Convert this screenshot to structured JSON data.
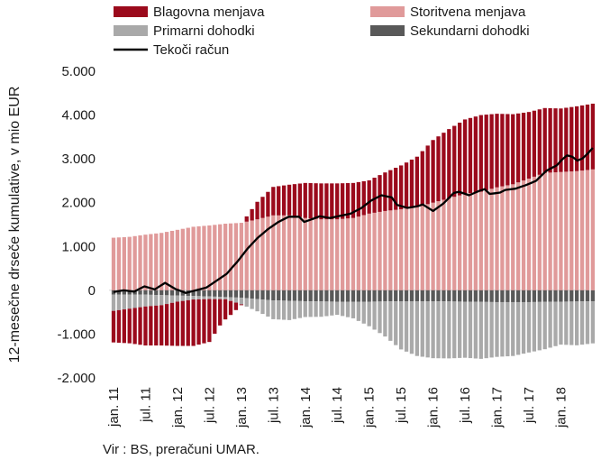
{
  "chart_data": {
    "type": "bar",
    "ylabel": "12-mesečne drseče kumulative, v mio EUR",
    "ylim": [
      -2000,
      5000
    ],
    "y_ticks": [
      -2000,
      -1000,
      0,
      1000,
      2000,
      3000,
      4000,
      5000
    ],
    "y_tick_labels": [
      "-2.000",
      "-1.000",
      "0",
      "1.000",
      "2.000",
      "3.000",
      "4.000",
      "5.000"
    ],
    "x_start": "2011-01",
    "x_end": "2018-07",
    "x_tick_labels": [
      "jan. 11",
      "jul. 11",
      "jan. 12",
      "jul. 12",
      "jan. 13",
      "jul. 13",
      "jan. 14",
      "jul. 14",
      "jan. 15",
      "jul. 15",
      "jan. 16",
      "jul. 16",
      "jan. 17",
      "jul. 17",
      "jan. 18"
    ],
    "legend": [
      {
        "name": "Blagovna menjava",
        "color": "#9b0a1c",
        "kind": "bar"
      },
      {
        "name": "Storitvena menjava",
        "color": "#e09a9a",
        "kind": "bar"
      },
      {
        "name": "Primarni dohodki",
        "color": "#a9a9a9",
        "kind": "bar"
      },
      {
        "name": "Sekundarni dohodki",
        "color": "#595959",
        "kind": "bar"
      },
      {
        "name": "Tekoči račun",
        "color": "#000000",
        "kind": "line"
      }
    ],
    "series": [
      {
        "name": "Blagovna menjava",
        "keys": [
          [
            0,
            -720
          ],
          [
            3,
            -790
          ],
          [
            6,
            -890
          ],
          [
            9,
            -920
          ],
          [
            12,
            -1010
          ],
          [
            15,
            -1060
          ],
          [
            18,
            -980
          ],
          [
            20,
            -600
          ],
          [
            22,
            -320
          ],
          [
            24,
            -20
          ],
          [
            27,
            400
          ],
          [
            30,
            650
          ],
          [
            33,
            700
          ],
          [
            36,
            800
          ],
          [
            39,
            820
          ],
          [
            42,
            820
          ],
          [
            45,
            800
          ],
          [
            48,
            760
          ],
          [
            51,
            880
          ],
          [
            54,
            1000
          ],
          [
            57,
            1150
          ],
          [
            60,
            1430
          ],
          [
            63,
            1580
          ],
          [
            66,
            1700
          ],
          [
            69,
            1750
          ],
          [
            72,
            1680
          ],
          [
            75,
            1600
          ],
          [
            78,
            1520
          ],
          [
            81,
            1480
          ],
          [
            84,
            1450
          ],
          [
            87,
            1480
          ],
          [
            90,
            1500
          ],
          [
            91,
            1620
          ]
        ]
      },
      {
        "name": "Storitvena menjava",
        "keys": [
          [
            0,
            1200
          ],
          [
            3,
            1220
          ],
          [
            6,
            1270
          ],
          [
            9,
            1310
          ],
          [
            12,
            1380
          ],
          [
            15,
            1450
          ],
          [
            18,
            1480
          ],
          [
            21,
            1520
          ],
          [
            24,
            1540
          ],
          [
            27,
            1620
          ],
          [
            30,
            1710
          ],
          [
            33,
            1710
          ],
          [
            36,
            1650
          ],
          [
            39,
            1620
          ],
          [
            42,
            1620
          ],
          [
            45,
            1650
          ],
          [
            48,
            1750
          ],
          [
            51,
            1810
          ],
          [
            54,
            1850
          ],
          [
            57,
            1900
          ],
          [
            60,
            2000
          ],
          [
            63,
            2100
          ],
          [
            66,
            2200
          ],
          [
            69,
            2250
          ],
          [
            72,
            2350
          ],
          [
            75,
            2420
          ],
          [
            78,
            2550
          ],
          [
            81,
            2680
          ],
          [
            84,
            2700
          ],
          [
            87,
            2720
          ],
          [
            90,
            2760
          ],
          [
            91,
            2770
          ]
        ]
      },
      {
        "name": "Primarni dohodki",
        "keys": [
          [
            0,
            -370
          ],
          [
            3,
            -320
          ],
          [
            6,
            -270
          ],
          [
            9,
            -230
          ],
          [
            12,
            -140
          ],
          [
            15,
            -80
          ],
          [
            18,
            -60
          ],
          [
            21,
            -50
          ],
          [
            24,
            -150
          ],
          [
            27,
            -280
          ],
          [
            30,
            -430
          ],
          [
            33,
            -440
          ],
          [
            36,
            -360
          ],
          [
            39,
            -350
          ],
          [
            42,
            -300
          ],
          [
            45,
            -380
          ],
          [
            48,
            -560
          ],
          [
            51,
            -800
          ],
          [
            54,
            -1100
          ],
          [
            57,
            -1250
          ],
          [
            60,
            -1300
          ],
          [
            63,
            -1300
          ],
          [
            66,
            -1280
          ],
          [
            69,
            -1300
          ],
          [
            72,
            -1250
          ],
          [
            75,
            -1230
          ],
          [
            78,
            -1150
          ],
          [
            81,
            -1080
          ],
          [
            84,
            -980
          ],
          [
            87,
            -1000
          ],
          [
            90,
            -960
          ],
          [
            91,
            -880
          ]
        ]
      },
      {
        "name": "Sekundarni dohodki",
        "keys": [
          [
            0,
            -100
          ],
          [
            6,
            -100
          ],
          [
            12,
            -120
          ],
          [
            18,
            -140
          ],
          [
            24,
            -170
          ],
          [
            27,
            -200
          ],
          [
            30,
            -230
          ],
          [
            36,
            -250
          ],
          [
            42,
            -260
          ],
          [
            48,
            -260
          ],
          [
            54,
            -250
          ],
          [
            60,
            -250
          ],
          [
            66,
            -260
          ],
          [
            72,
            -270
          ],
          [
            78,
            -270
          ],
          [
            84,
            -260
          ],
          [
            91,
            -250
          ]
        ]
      },
      {
        "name": "Tekoči račun",
        "keys": [
          [
            0,
            -40
          ],
          [
            2,
            0
          ],
          [
            4,
            -30
          ],
          [
            6,
            90
          ],
          [
            8,
            20
          ],
          [
            10,
            170
          ],
          [
            12,
            30
          ],
          [
            14,
            -60
          ],
          [
            16,
            0
          ],
          [
            18,
            60
          ],
          [
            20,
            220
          ],
          [
            22,
            380
          ],
          [
            24,
            650
          ],
          [
            26,
            950
          ],
          [
            28,
            1200
          ],
          [
            30,
            1400
          ],
          [
            32,
            1560
          ],
          [
            34,
            1680
          ],
          [
            36,
            1680
          ],
          [
            37,
            1560
          ],
          [
            38,
            1600
          ],
          [
            40,
            1690
          ],
          [
            42,
            1650
          ],
          [
            44,
            1700
          ],
          [
            46,
            1750
          ],
          [
            48,
            1870
          ],
          [
            50,
            2050
          ],
          [
            52,
            2170
          ],
          [
            54,
            2120
          ],
          [
            55,
            1950
          ],
          [
            57,
            1880
          ],
          [
            59,
            1920
          ],
          [
            60,
            1960
          ],
          [
            62,
            1810
          ],
          [
            64,
            1980
          ],
          [
            66,
            2220
          ],
          [
            67,
            2250
          ],
          [
            69,
            2170
          ],
          [
            71,
            2270
          ],
          [
            72,
            2310
          ],
          [
            73,
            2200
          ],
          [
            75,
            2230
          ],
          [
            76,
            2290
          ],
          [
            78,
            2320
          ],
          [
            80,
            2400
          ],
          [
            82,
            2500
          ],
          [
            84,
            2730
          ],
          [
            86,
            2850
          ],
          [
            87,
            2980
          ],
          [
            88,
            3080
          ],
          [
            89,
            3050
          ],
          [
            90,
            2960
          ],
          [
            91,
            3010
          ],
          [
            92,
            3120
          ],
          [
            93,
            3250
          ]
        ]
      }
    ]
  },
  "source_text": "Vir : BS, preračuni  UMAR."
}
